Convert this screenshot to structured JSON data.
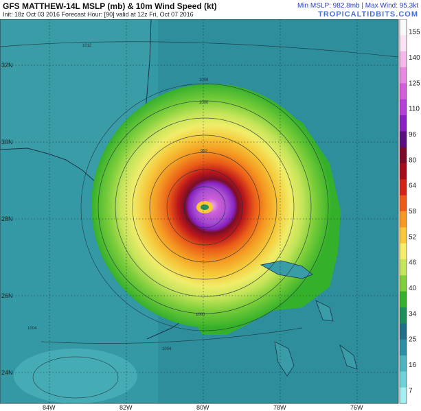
{
  "header": {
    "title": "GFS MATTHEW-14L MSLP (mb) & 10m Wind Speed (kt)",
    "subtitle": "Init: 18z Oct 03 2016   Forecast Hour: [90]   valid at 12z Fri, Oct 07 2016",
    "stats": "Min MSLP: 982.8mb | Max Wind: 95.3kt",
    "site": "TROPICALTIDBITS.COM"
  },
  "axes": {
    "lat_labels": [
      "32N",
      "30N",
      "28N",
      "26N",
      "24N"
    ],
    "lon_labels": [
      "84W",
      "82W",
      "80W",
      "78W",
      "76W"
    ]
  },
  "isobars": [
    "1012",
    "1008",
    "1004",
    "1000",
    "992",
    "1004",
    "1000"
  ],
  "colorbar": {
    "ticks": [
      "155",
      "140",
      "125",
      "110",
      "96",
      "80",
      "64",
      "58",
      "52",
      "46",
      "40",
      "34",
      "25",
      "16",
      "7"
    ],
    "colors": [
      "#f9f9fb",
      "#fbe3f4",
      "#f3b8e9",
      "#e58ae0",
      "#d25ed9",
      "#b53fd7",
      "#8a20c4",
      "#5b0d7f",
      "#7a0a28",
      "#a60d1c",
      "#d42418",
      "#ee5a18",
      "#f89a22",
      "#f9c93a",
      "#f4ee6a",
      "#c7e55a",
      "#7fcf3a",
      "#35b02a",
      "#1a8f5a",
      "#1f6f8a",
      "#2a8fa5",
      "#4cb3bf",
      "#6fd2d6",
      "#a7eef0"
    ]
  },
  "map_colors": {
    "ocean": "#2f8e9c",
    "land": "#3a9ca7",
    "coast": "#17344a"
  }
}
